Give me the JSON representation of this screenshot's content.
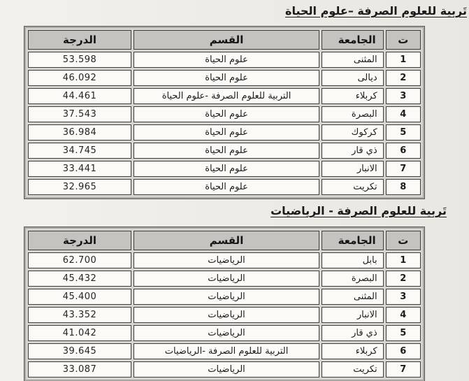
{
  "document": {
    "tables": [
      {
        "title": "تَربية للعلوم الصرفة –علوم الحياة",
        "headers": {
          "index": "ت",
          "university": "الجامعة",
          "department": "القسم",
          "score": "الدرجة"
        },
        "rows": [
          {
            "index": "1",
            "university": "المثنى",
            "department": "علوم الحياة",
            "score": "53.598"
          },
          {
            "index": "2",
            "university": "ديالى",
            "department": "علوم الحياة",
            "score": "46.092"
          },
          {
            "index": "3",
            "university": "كربلاء",
            "department": "التربية للعلوم الصرفة -علوم الحياة",
            "score": "44.461"
          },
          {
            "index": "4",
            "university": "البصرة",
            "department": "علوم الحياة",
            "score": "37.543"
          },
          {
            "index": "5",
            "university": "كركوك",
            "department": "علوم الحياة",
            "score": "36.984"
          },
          {
            "index": "6",
            "university": "ذي قار",
            "department": "علوم الحياة",
            "score": "34.745"
          },
          {
            "index": "7",
            "university": "الانبار",
            "department": "علوم الحياة",
            "score": "33.441"
          },
          {
            "index": "8",
            "university": "تكريت",
            "department": "علوم الحياة",
            "score": "32.965"
          }
        ]
      },
      {
        "title": "تَربية للعلوم الصرفة - الرياضيات",
        "headers": {
          "index": "ت",
          "university": "الجامعة",
          "department": "القسم",
          "score": "الدرجة"
        },
        "rows": [
          {
            "index": "1",
            "university": "بابل",
            "department": "الرياضيات",
            "score": "62.700"
          },
          {
            "index": "2",
            "university": "البصرة",
            "department": "الرياضيات",
            "score": "45.432"
          },
          {
            "index": "3",
            "university": "المثنى",
            "department": "الرياضيات",
            "score": "45.400"
          },
          {
            "index": "4",
            "university": "الانبار",
            "department": "الرياضيات",
            "score": "43.352"
          },
          {
            "index": "5",
            "university": "ذي قار",
            "department": "الرياضيات",
            "score": "41.042"
          },
          {
            "index": "6",
            "university": "كربلاء",
            "department": "التربية للعلوم الصرفة -الرياضيات",
            "score": "39.645"
          },
          {
            "index": "7",
            "university": "تكريت",
            "department": "الرياضيات",
            "score": "33.087"
          }
        ]
      }
    ]
  }
}
